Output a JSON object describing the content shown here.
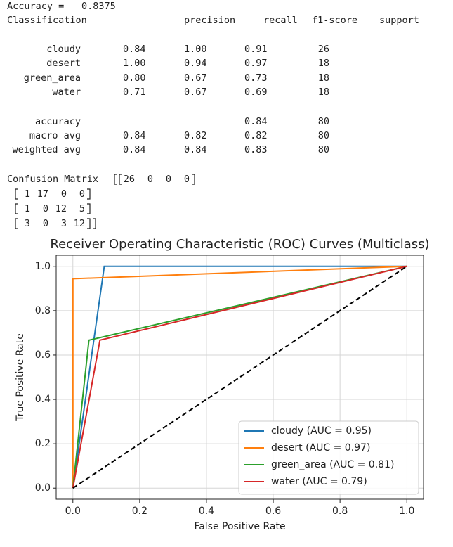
{
  "accuracy": {
    "label": "Accuracy =",
    "value": "0.8375"
  },
  "report": {
    "title": "Classification",
    "columns": [
      "precision",
      "recall",
      "f1-score",
      "support"
    ],
    "rows": [
      {
        "label": "cloudy",
        "cells": [
          "0.84",
          "1.00",
          "0.91",
          "26"
        ]
      },
      {
        "label": "desert",
        "cells": [
          "1.00",
          "0.94",
          "0.97",
          "18"
        ]
      },
      {
        "label": "green_area",
        "cells": [
          "0.80",
          "0.67",
          "0.73",
          "18"
        ]
      },
      {
        "label": "water",
        "cells": [
          "0.71",
          "0.67",
          "0.69",
          "18"
        ]
      },
      {
        "label": "accuracy",
        "cells": [
          null,
          null,
          "0.84",
          "80"
        ]
      },
      {
        "label": "macro avg",
        "cells": [
          "0.84",
          "0.82",
          "0.82",
          "80"
        ]
      },
      {
        "label": "weighted avg",
        "cells": [
          "0.84",
          "0.84",
          "0.83",
          "80"
        ]
      }
    ]
  },
  "confusion_matrix": {
    "label": "Confusion Matrix",
    "rows": [
      [
        26,
        0,
        0,
        0
      ],
      [
        1,
        17,
        0,
        0
      ],
      [
        1,
        0,
        12,
        5
      ],
      [
        3,
        0,
        3,
        12
      ]
    ]
  },
  "chart_data": {
    "type": "line",
    "title": "Receiver Operating Characteristic (ROC) Curves (Multiclass)",
    "xlabel": "False Positive Rate",
    "ylabel": "True Positive Rate",
    "xlim": [
      -0.05,
      1.05
    ],
    "ylim": [
      -0.05,
      1.05
    ],
    "xticks": [
      {
        "value": 0,
        "label": "0.0"
      },
      {
        "value": 0.2,
        "label": "0.2"
      },
      {
        "value": 0.4,
        "label": "0.4"
      },
      {
        "value": 0.6,
        "label": "0.6"
      },
      {
        "value": 0.8,
        "label": "0.8"
      },
      {
        "value": 1,
        "label": "1.0"
      }
    ],
    "yticks": [
      {
        "value": 0,
        "label": "0.0"
      },
      {
        "value": 0.2,
        "label": "0.2"
      },
      {
        "value": 0.4,
        "label": "0.4"
      },
      {
        "value": 0.6,
        "label": "0.6"
      },
      {
        "value": 0.8,
        "label": "0.8"
      },
      {
        "value": 1,
        "label": "1.0"
      }
    ],
    "grid": true,
    "legend": "lower right",
    "series": [
      {
        "name": "cloudy (AUC = 0.95)",
        "color": "#1f77b4",
        "x": [
          0,
          0.094,
          1
        ],
        "values": [
          0,
          1,
          1
        ]
      },
      {
        "name": "desert (AUC = 0.97)",
        "color": "#ff7f0e",
        "x": [
          0,
          0,
          1
        ],
        "values": [
          0,
          0.944,
          1
        ]
      },
      {
        "name": "green_area (AUC = 0.81)",
        "color": "#2ca02c",
        "x": [
          0,
          0.048,
          1
        ],
        "values": [
          0,
          0.667,
          1
        ]
      },
      {
        "name": "water (AUC = 0.79)",
        "color": "#d62728",
        "x": [
          0,
          0.081,
          1
        ],
        "values": [
          0,
          0.667,
          1
        ]
      }
    ],
    "reference_line": {
      "x": [
        0,
        1
      ],
      "values": [
        0,
        1
      ],
      "color": "#000000",
      "style": "dashed"
    }
  }
}
